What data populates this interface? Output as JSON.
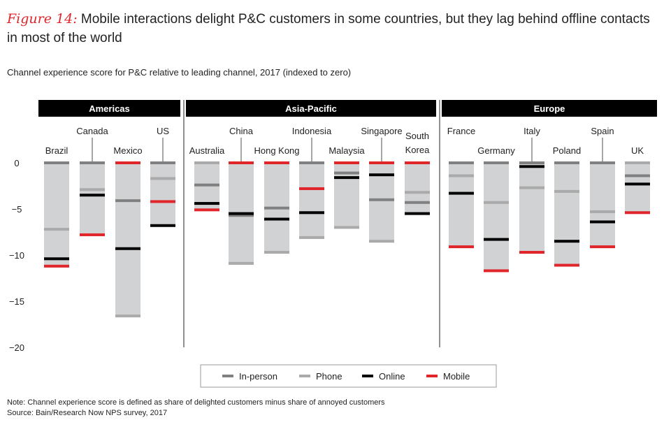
{
  "title_prefix": "Figure 14:",
  "title": " Mobile interactions delight P&C customers in some countries, but they lag behind offline contacts in most of the world",
  "subtitle": "Channel experience score for P&C relative to leading channel, 2017 (indexed to zero)",
  "note": "Note: Channel experience score is defined as share of delighted customers minus share of annoyed customers",
  "source": "Source: Bain/Research Now NPS survey, 2017",
  "chart_data": {
    "type": "range-marker",
    "title": "Channel experience score for P&C relative to leading channel, 2017 (indexed to zero)",
    "ylim": [
      -20,
      0
    ],
    "yticks": [
      0,
      -5,
      -10,
      -15,
      -20
    ],
    "ytick_labels": [
      "0",
      "−5",
      "−10",
      "−15",
      "−20"
    ],
    "grid": false,
    "legend_placement": "bottom",
    "series_names": [
      "In-person",
      "Phone",
      "Online",
      "Mobile"
    ],
    "colors": {
      "In-person": "#808080",
      "Phone": "#aaaaaa",
      "Online": "#000000",
      "Mobile": "#e0262a",
      "bar": "#d1d2d4"
    },
    "regions": [
      {
        "name": "Americas",
        "countries": [
          {
            "name": "Brazil",
            "values": {
              "In-person": 0,
              "Phone": -7.2,
              "Online": -10.4,
              "Mobile": -11.2
            }
          },
          {
            "name": "Canada",
            "values": {
              "In-person": 0,
              "Phone": -2.9,
              "Online": -3.5,
              "Mobile": -7.8
            }
          },
          {
            "name": "Mexico",
            "values": {
              "In-person": -4.1,
              "Phone": -16.6,
              "Online": -9.3,
              "Mobile": 0
            }
          },
          {
            "name": "US",
            "values": {
              "In-person": 0,
              "Phone": -1.7,
              "Online": -6.8,
              "Mobile": -4.2
            }
          }
        ]
      },
      {
        "name": "Asia-Pacific",
        "countries": [
          {
            "name": "Australia",
            "values": {
              "In-person": -2.4,
              "Phone": 0,
              "Online": -4.4,
              "Mobile": -5.1
            }
          },
          {
            "name": "China",
            "values": {
              "In-person": -5.7,
              "Phone": -10.9,
              "Online": -5.5,
              "Mobile": 0
            }
          },
          {
            "name": "Hong Kong",
            "values": {
              "In-person": -4.9,
              "Phone": -9.7,
              "Online": -6.1,
              "Mobile": 0
            }
          },
          {
            "name": "Indonesia",
            "values": {
              "In-person": 0,
              "Phone": -8.1,
              "Online": -5.4,
              "Mobile": -2.8
            }
          },
          {
            "name": "Malaysia",
            "values": {
              "In-person": -1.1,
              "Phone": -7.0,
              "Online": -1.6,
              "Mobile": 0
            }
          },
          {
            "name": "Singapore",
            "values": {
              "In-person": -4.0,
              "Phone": -8.5,
              "Online": -1.3,
              "Mobile": 0
            }
          },
          {
            "name": "South Korea",
            "values": {
              "In-person": -4.3,
              "Phone": -3.2,
              "Online": -5.5,
              "Mobile": 0
            }
          }
        ]
      },
      {
        "name": "Europe",
        "countries": [
          {
            "name": "France",
            "values": {
              "In-person": 0,
              "Phone": -1.4,
              "Online": -3.3,
              "Mobile": -9.1
            }
          },
          {
            "name": "Germany",
            "values": {
              "In-person": 0,
              "Phone": -4.3,
              "Online": -8.3,
              "Mobile": -11.7
            }
          },
          {
            "name": "Italy",
            "values": {
              "In-person": 0,
              "Phone": -2.7,
              "Online": -0.4,
              "Mobile": -9.7
            }
          },
          {
            "name": "Poland",
            "values": {
              "In-person": 0,
              "Phone": -3.1,
              "Online": -8.5,
              "Mobile": -11.1
            }
          },
          {
            "name": "Spain",
            "values": {
              "In-person": 0,
              "Phone": -5.3,
              "Online": -6.4,
              "Mobile": -9.1
            }
          },
          {
            "name": "UK",
            "values": {
              "In-person": -1.4,
              "Phone": 0,
              "Online": -2.3,
              "Mobile": -5.4
            }
          }
        ]
      }
    ]
  }
}
